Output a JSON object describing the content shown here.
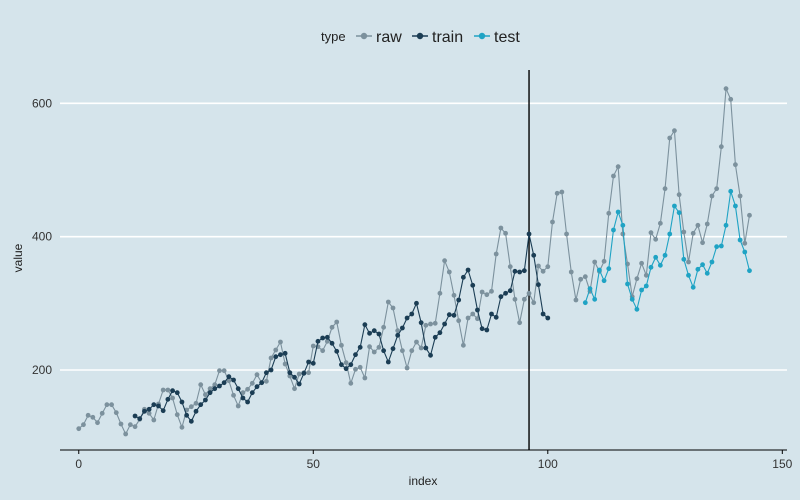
{
  "chart_data": {
    "type": "line",
    "legend_title": "type",
    "legend_position": "top",
    "xlabel": "index",
    "ylabel": "value",
    "xlim": [
      -4,
      151
    ],
    "ylim": [
      80,
      650
    ],
    "xticks": [
      0,
      50,
      100,
      150
    ],
    "yticks": [
      200,
      400,
      600
    ],
    "vline_x": 96,
    "grid": "horizontal",
    "colors": {
      "raw": "#7c919d",
      "train": "#1b3d54",
      "test": "#1fa3c4",
      "vline": "#000000",
      "grid": "#ffffff",
      "axis": "#000000"
    },
    "series": [
      {
        "name": "raw",
        "x_start": 0,
        "values": [
          112,
          118,
          132,
          129,
          121,
          135,
          148,
          148,
          136,
          119,
          104,
          118,
          115,
          126,
          141,
          135,
          125,
          149,
          170,
          170,
          158,
          133,
          114,
          140,
          145,
          150,
          178,
          163,
          172,
          178,
          199,
          199,
          184,
          162,
          146,
          166,
          171,
          180,
          193,
          181,
          183,
          218,
          230,
          242,
          209,
          191,
          172,
          194,
          196,
          196,
          236,
          235,
          229,
          243,
          264,
          272,
          237,
          211,
          180,
          201,
          204,
          188,
          235,
          227,
          234,
          264,
          302,
          293,
          259,
          229,
          203,
          229,
          242,
          233,
          267,
          269,
          270,
          315,
          364,
          347,
          312,
          274,
          237,
          278,
          284,
          277,
          317,
          313,
          318,
          374,
          413,
          405,
          355,
          306,
          271,
          306,
          315,
          301,
          356,
          348,
          355,
          422,
          465,
          467,
          404,
          347,
          305,
          336,
          340,
          318,
          362,
          348,
          363,
          435,
          491,
          505,
          404,
          359,
          310,
          337,
          360,
          342,
          406,
          396,
          420,
          472,
          548,
          559,
          463,
          407,
          362,
          405,
          417,
          391,
          419,
          461,
          472,
          535,
          622,
          606,
          508,
          461,
          390,
          432
        ]
      },
      {
        "name": "train",
        "x_start": 12,
        "values": [
          131,
          127,
          138,
          141,
          148,
          146,
          139,
          156,
          169,
          166,
          152,
          132,
          123,
          138,
          148,
          155,
          166,
          172,
          176,
          181,
          190,
          185,
          172,
          158,
          152,
          166,
          175,
          181,
          196,
          200,
          220,
          223,
          225,
          196,
          189,
          179,
          195,
          212,
          210,
          243,
          248,
          249,
          240,
          228,
          208,
          202,
          208,
          223,
          234,
          268,
          255,
          259,
          254,
          229,
          212,
          232,
          252,
          263,
          278,
          284,
          300,
          271,
          233,
          222,
          249,
          256,
          269,
          283,
          282,
          305,
          339,
          350,
          327,
          290,
          262,
          260,
          284,
          279,
          310,
          315,
          319,
          348,
          347,
          349,
          404,
          372,
          328,
          284,
          278
        ]
      },
      {
        "name": "test",
        "x_start": 108,
        "values": [
          301,
          322,
          306,
          350,
          334,
          352,
          410,
          437,
          417,
          329,
          306,
          291,
          320,
          326,
          354,
          369,
          357,
          372,
          404,
          446,
          436,
          366,
          342,
          324,
          351,
          358,
          345,
          362,
          385,
          386,
          417,
          468,
          446,
          395,
          377,
          349
        ]
      }
    ]
  }
}
